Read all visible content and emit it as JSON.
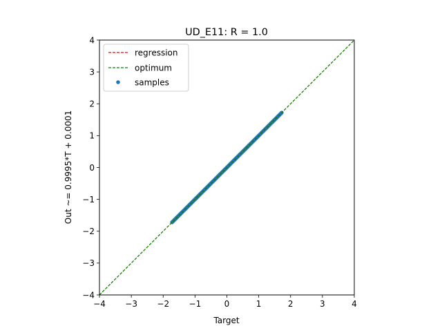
{
  "chart_data": {
    "type": "scatter",
    "title": "UD_E11: R = 1.0",
    "xlabel": "Target",
    "ylabel": "Out ~= 0.9995*T + 0.0001",
    "xlim": [
      -4,
      4
    ],
    "ylim": [
      -4,
      4
    ],
    "xticks": [
      -4,
      -3,
      -2,
      -1,
      0,
      1,
      2,
      3,
      4
    ],
    "yticks": [
      -4,
      -3,
      -2,
      -1,
      0,
      1,
      2,
      3,
      4
    ],
    "xtick_labels": [
      "−4",
      "−3",
      "−2",
      "−1",
      "0",
      "1",
      "2",
      "3",
      "4"
    ],
    "ytick_labels": [
      "−4",
      "−3",
      "−2",
      "−1",
      "0",
      "1",
      "2",
      "3",
      "4"
    ],
    "grid": false,
    "legend_position": "top-left",
    "series": [
      {
        "name": "regression",
        "kind": "line",
        "style": "dashed",
        "color": "#ff0000",
        "slope": 0.9995,
        "intercept": 0.0001,
        "x": [
          -4,
          4
        ]
      },
      {
        "name": "optimum",
        "kind": "line",
        "style": "dashed",
        "color": "#008000",
        "slope": 1,
        "intercept": 0,
        "x": [
          -4,
          4
        ]
      },
      {
        "name": "samples",
        "kind": "scatter",
        "color": "#1f77b4",
        "x_range": [
          -1.72,
          1.72
        ],
        "slope": 0.9995,
        "intercept": 0.0001
      }
    ]
  }
}
